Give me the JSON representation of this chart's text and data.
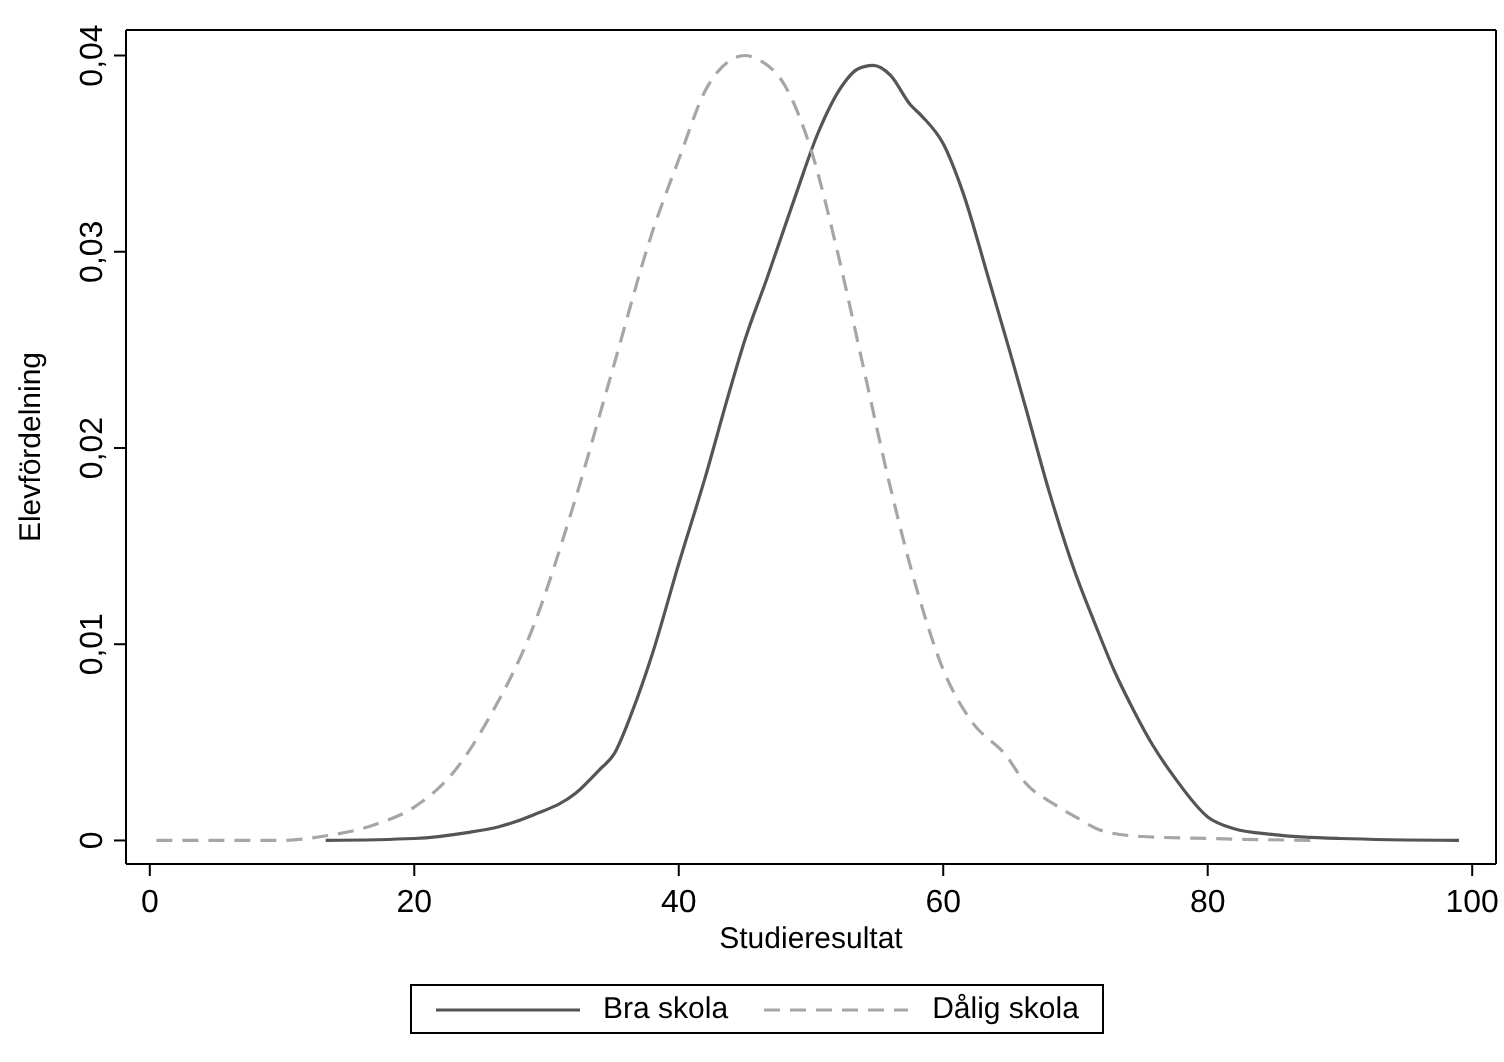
{
  "chart_data": {
    "type": "line",
    "xlabel": "Studieresultat",
    "ylabel": "Elevfördelning",
    "xlim": [
      -1.8,
      101.8
    ],
    "xticks": [
      0,
      20,
      40,
      60,
      80,
      100
    ],
    "ylim": [
      -0.0012,
      0.0413
    ],
    "yticks": [
      {
        "value": 0,
        "label": "0"
      },
      {
        "value": 0.01,
        "label": "0,01"
      },
      {
        "value": 0.02,
        "label": "0,02"
      },
      {
        "value": 0.03,
        "label": "0,03"
      },
      {
        "value": 0.04,
        "label": "0,04"
      }
    ],
    "legend": "bottom",
    "marker": "none",
    "series": [
      {
        "name": "Bra skola",
        "color": "#555555",
        "line_style": "solid",
        "x": [
          13.3,
          20,
          24,
          26.4,
          29,
          32.2,
          34,
          35.1,
          36.5,
          38,
          40,
          42,
          43.8,
          45,
          46.7,
          48.9,
          50.5,
          52.5,
          53.5,
          54.7,
          56,
          57.5,
          58.4,
          60,
          61.5,
          63.4,
          65,
          66.3,
          68,
          70,
          71.5,
          72.9,
          74.5,
          75.8,
          77.5,
          80,
          82,
          85,
          90,
          99
        ],
        "values": [
          0,
          0.0001,
          0.0004,
          0.0007,
          0.0013,
          0.0024,
          0.0036,
          0.0044,
          0.0066,
          0.0095,
          0.0141,
          0.0185,
          0.0228,
          0.0255,
          0.0287,
          0.033,
          0.036,
          0.0386,
          0.0393,
          0.0395,
          0.039,
          0.0375,
          0.0369,
          0.0355,
          0.033,
          0.0287,
          0.025,
          0.0219,
          0.0178,
          0.0136,
          0.011,
          0.0087,
          0.0065,
          0.0049,
          0.0032,
          0.0012,
          0.0006,
          0.0003,
          0.0001,
          0
        ]
      },
      {
        "name": "Dålig skola",
        "color": "#a6a6a6",
        "line_style": "dashed",
        "x": [
          0.5,
          10,
          13,
          17,
          20,
          23,
          25.7,
          29,
          32,
          35,
          38,
          40,
          42,
          44,
          45,
          46,
          48,
          50,
          52,
          54,
          56,
          58,
          60,
          62,
          64.9,
          66,
          68.5,
          70,
          72,
          75,
          80,
          88
        ],
        "values": [
          0,
          0,
          0.0002,
          0.0008,
          0.0017,
          0.0035,
          0.0063,
          0.0109,
          0.017,
          0.024,
          0.031,
          0.0347,
          0.0382,
          0.0398,
          0.04,
          0.0398,
          0.0385,
          0.0352,
          0.03,
          0.024,
          0.018,
          0.0128,
          0.0087,
          0.0062,
          0.0042,
          0.0031,
          0.0018,
          0.0012,
          0.0005,
          0.0002,
          0.0001,
          0
        ]
      }
    ]
  }
}
